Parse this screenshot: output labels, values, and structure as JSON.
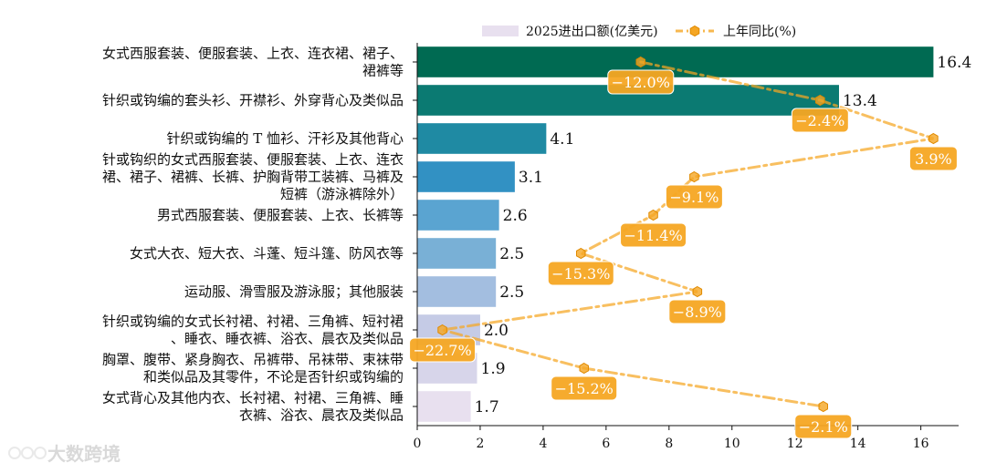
{
  "watermark": "大数跨境",
  "chart_data": {
    "type": "bar",
    "orientation": "horizontal",
    "categories": [
      [
        "女式西服套装、便服套装、上衣、连衣裙、裙子、",
        "裙裤等"
      ],
      [
        "针织或钩编的套头衫、开襟衫、外穿背心及类似品"
      ],
      [
        "针织或钩编的 T 恤衫、汗衫及其他背心"
      ],
      [
        "针或钩织的女式西服套装、便服套装、上衣、连衣",
        "裙、裙子、裙裤、长裤、护胸背带工装裤、马裤及",
        "短裤（游泳裤除外）"
      ],
      [
        "男式西服套装、便服套装、上衣、长裤等"
      ],
      [
        "女式大衣、短大衣、斗蓬、短斗篷、防风衣等"
      ],
      [
        "运动服、滑雪服及游泳服；其他服装"
      ],
      [
        "针织或钩编的女式长衬裙、衬裙、三角裤、短衬裙",
        "、睡衣、睡衣裤、浴衣、晨衣及类似品"
      ],
      [
        "胸罩、腹带、紧身胸衣、吊裤带、吊袜带、束袜带",
        "和类似品及其零件，不论是否针织或钩编的"
      ],
      [
        "女式背心及其他内衣、长衬裙、衬裙、三角裤、睡",
        "衣裤、浴衣、晨衣及类似品"
      ]
    ],
    "series": [
      {
        "name": "2025进出口额(亿美元)",
        "values": [
          16.4,
          13.4,
          4.1,
          3.1,
          2.6,
          2.5,
          2.5,
          2.0,
          1.9,
          1.7
        ],
        "value_labels": [
          "16.4",
          "13.4",
          "4.1",
          "3.1",
          "2.6",
          "2.5",
          "2.5",
          "2.0",
          "1.9",
          "1.7"
        ],
        "colors": [
          "#006a52",
          "#0b7a72",
          "#1f8aa3",
          "#3291c3",
          "#5aa4d1",
          "#79b0d6",
          "#a3bee0",
          "#c5cbe6",
          "#d7d5ea",
          "#e8e0ef"
        ]
      },
      {
        "name": "上年同比(%)",
        "values": [
          -12.0,
          -2.4,
          3.9,
          -9.1,
          -11.4,
          -15.3,
          -8.9,
          -22.7,
          -15.2,
          -2.1
        ],
        "value_labels": [
          "−12.0%",
          "−2.4%",
          "3.9%",
          "−9.1%",
          "−11.4%",
          "−15.3%",
          "−8.9%",
          "−22.7%",
          "−15.2%",
          "−2.1%"
        ],
        "x_plot": [
          7.1,
          12.8,
          16.4,
          8.8,
          7.5,
          5.2,
          8.9,
          0.8,
          5.3,
          12.9
        ],
        "color": "#f5a623"
      }
    ],
    "xlim": [
      0,
      17.2
    ],
    "xticks": [
      0,
      2,
      4,
      6,
      8,
      10,
      12,
      14,
      16
    ],
    "legend": "top-center"
  }
}
